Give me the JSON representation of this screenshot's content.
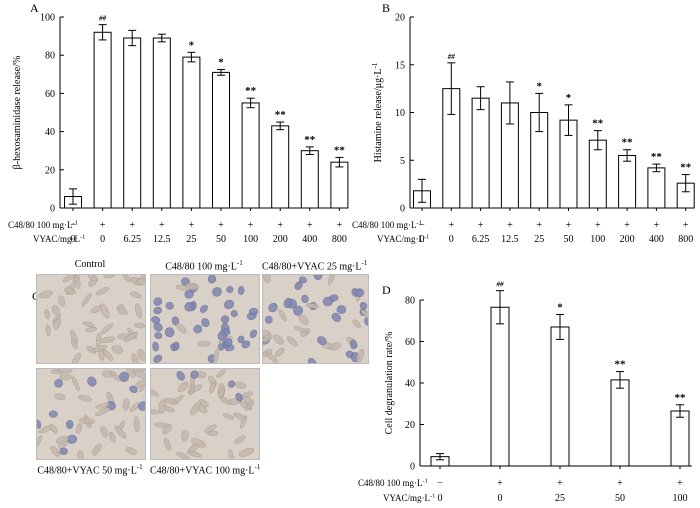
{
  "chart_data": [
    {
      "panel": "A",
      "type": "bar",
      "ylabel": "β-hexosaminidase release/%",
      "ylim": [
        0,
        100
      ],
      "yticks": [
        0,
        20,
        40,
        60,
        80,
        100
      ],
      "row1_label": "C48/80 100 mg·L",
      "row1_sup": "-1",
      "row2_label": "VYAC/mg·L",
      "row2_sup": "-1",
      "categories": [
        "0",
        "0",
        "6.25",
        "12.5",
        "25",
        "50",
        "100",
        "200",
        "400",
        "800"
      ],
      "c4880": [
        "−",
        "+",
        "+",
        "+",
        "+",
        "+",
        "+",
        "+",
        "+",
        "+"
      ],
      "vyac": [
        "0",
        "0",
        "6.25",
        "12.5",
        "25",
        "50",
        "100",
        "200",
        "400",
        "800"
      ],
      "values": [
        6,
        92,
        89,
        89,
        79,
        71,
        55,
        43,
        30,
        24
      ],
      "errors": [
        4,
        4,
        4,
        2,
        2.5,
        1.5,
        2.5,
        2,
        2,
        2.5
      ],
      "annotations": [
        "",
        "##",
        "",
        "",
        "*",
        "*",
        "**",
        "**",
        "**",
        "**"
      ]
    },
    {
      "panel": "B",
      "type": "bar",
      "ylabel": "Histamine release/μg·L",
      "ylabel_sup": "-1",
      "ylim": [
        0,
        20
      ],
      "yticks": [
        0,
        5,
        10,
        15,
        20
      ],
      "row1_label": "C48/80 100 mg·L",
      "row1_sup": "-1",
      "row2_label": "VYAC/mg·L",
      "row2_sup": "-1",
      "categories": [
        "0",
        "0",
        "6.25",
        "12.5",
        "25",
        "50",
        "100",
        "200",
        "400",
        "800"
      ],
      "c4880": [
        "−",
        "+",
        "+",
        "+",
        "+",
        "+",
        "+",
        "+",
        "+",
        "+"
      ],
      "vyac": [
        "0",
        "0",
        "6.25",
        "12.5",
        "25",
        "50",
        "100",
        "200",
        "400",
        "800"
      ],
      "values": [
        1.8,
        12.5,
        11.5,
        11.0,
        10.0,
        9.2,
        7.1,
        5.5,
        4.2,
        2.6
      ],
      "errors": [
        1.2,
        2.7,
        1.2,
        2.2,
        2.0,
        1.6,
        1.0,
        0.6,
        0.4,
        0.9
      ],
      "annotations": [
        "",
        "##",
        "",
        "",
        "*",
        "*",
        "**",
        "**",
        "**",
        "**"
      ]
    },
    {
      "panel": "D",
      "type": "bar",
      "ylabel": "Cell degranulation rate/%",
      "ylim": [
        0,
        80
      ],
      "yticks": [
        0,
        20,
        40,
        60,
        80
      ],
      "row1_label": "C48/80 100 mg·L",
      "row1_sup": "-1",
      "row2_label": "VYAC/mg·L",
      "row2_sup": "-1",
      "categories": [
        "0",
        "0",
        "25",
        "50",
        "100"
      ],
      "c4880": [
        "−",
        "+",
        "+",
        "+",
        "+"
      ],
      "vyac": [
        "0",
        "0",
        "25",
        "50",
        "100"
      ],
      "values": [
        4.5,
        76.5,
        67,
        41.5,
        26.5
      ],
      "errors": [
        1.5,
        8,
        6,
        4,
        3
      ],
      "annotations": [
        "",
        "##",
        "*",
        "**",
        "**"
      ]
    }
  ],
  "panel_c": {
    "letter": "C",
    "images": [
      {
        "caption": "Control",
        "density": "none"
      },
      {
        "caption": "C48/80 100 mg·L",
        "sup": "-1",
        "density": "high"
      },
      {
        "caption": "C48/80+VYAC 25 mg·L",
        "sup": "-1",
        "density": "medium"
      },
      {
        "caption": "C48/80+VYAC 50 mg·L",
        "sup": "-1",
        "density": "low"
      },
      {
        "caption": "C48/80+VYAC 100 mg·L",
        "sup": "-1",
        "density": "verylow"
      }
    ]
  },
  "colors": {
    "bar_fill": "#ffffff",
    "stroke": "#000000",
    "photo_bg": "#d9d0c8",
    "stained_cell": "#7f86b0",
    "plain_cell": "#c4b7ac"
  }
}
